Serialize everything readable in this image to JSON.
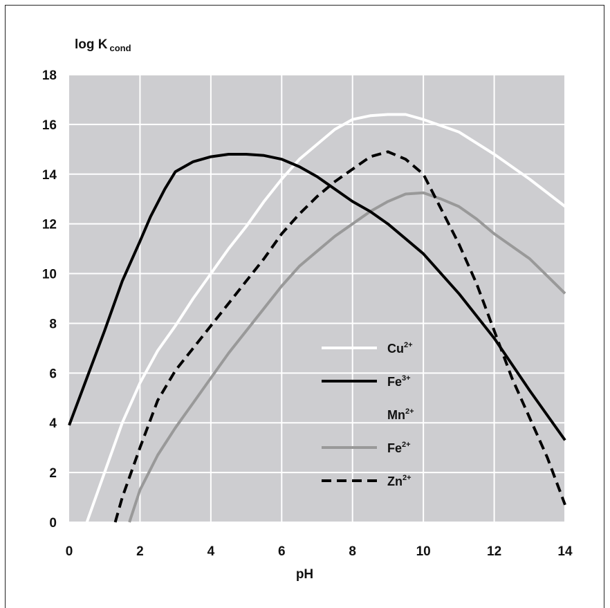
{
  "chart_data": {
    "type": "line",
    "ylabel_main": "log K",
    "ylabel_sub": "cond",
    "xlabel": "pH",
    "xlim": [
      0,
      14
    ],
    "ylim": [
      0,
      18
    ],
    "xticks": [
      0,
      2,
      4,
      6,
      8,
      10,
      12,
      14
    ],
    "yticks": [
      0,
      2,
      4,
      6,
      8,
      10,
      12,
      14,
      16,
      18
    ],
    "grid": true,
    "legend_position": "lower-right",
    "plot_background": "#cdcdd0",
    "series": [
      {
        "name": "Cu",
        "charge": "2+",
        "color": "#ffffff",
        "dash": "solid",
        "points": [
          [
            0.5,
            0
          ],
          [
            1,
            2
          ],
          [
            1.5,
            4
          ],
          [
            2,
            5.6
          ],
          [
            2.5,
            6.9
          ],
          [
            3,
            7.9
          ],
          [
            3.5,
            9
          ],
          [
            4,
            10
          ],
          [
            4.5,
            11
          ],
          [
            5,
            11.9
          ],
          [
            5.5,
            12.9
          ],
          [
            6,
            13.8
          ],
          [
            6.5,
            14.6
          ],
          [
            7,
            15.2
          ],
          [
            7.5,
            15.8
          ],
          [
            8,
            16.2
          ],
          [
            8.5,
            16.35
          ],
          [
            9,
            16.4
          ],
          [
            9.5,
            16.4
          ],
          [
            10,
            16.2
          ],
          [
            11,
            15.7
          ],
          [
            12,
            14.8
          ],
          [
            13,
            13.8
          ],
          [
            14,
            12.7
          ]
        ]
      },
      {
        "name": "Fe",
        "charge": "3+",
        "color": "#000000",
        "dash": "solid",
        "points": [
          [
            0,
            3.9
          ],
          [
            0.5,
            5.8
          ],
          [
            1,
            7.7
          ],
          [
            1.5,
            9.7
          ],
          [
            2,
            11.3
          ],
          [
            2.3,
            12.3
          ],
          [
            2.7,
            13.4
          ],
          [
            3,
            14.1
          ],
          [
            3.5,
            14.5
          ],
          [
            4,
            14.7
          ],
          [
            4.5,
            14.8
          ],
          [
            5,
            14.8
          ],
          [
            5.5,
            14.75
          ],
          [
            6,
            14.6
          ],
          [
            6.5,
            14.3
          ],
          [
            7,
            13.9
          ],
          [
            7.5,
            13.4
          ],
          [
            8,
            12.9
          ],
          [
            8.5,
            12.5
          ],
          [
            9,
            12
          ],
          [
            9.5,
            11.4
          ],
          [
            10,
            10.8
          ],
          [
            11,
            9.2
          ],
          [
            12,
            7.4
          ],
          [
            13,
            5.3
          ],
          [
            14,
            3.3
          ]
        ]
      },
      {
        "name": "Mn",
        "charge": "2+",
        "color": "",
        "dash": "none",
        "points": []
      },
      {
        "name": "Fe",
        "charge": "2+",
        "color": "#999999",
        "dash": "solid",
        "points": [
          [
            1.7,
            0
          ],
          [
            2,
            1.3
          ],
          [
            2.5,
            2.7
          ],
          [
            3,
            3.8
          ],
          [
            3.5,
            4.8
          ],
          [
            4,
            5.8
          ],
          [
            4.5,
            6.8
          ],
          [
            5,
            7.7
          ],
          [
            5.5,
            8.6
          ],
          [
            6,
            9.5
          ],
          [
            6.5,
            10.3
          ],
          [
            7,
            10.9
          ],
          [
            7.5,
            11.5
          ],
          [
            8,
            12
          ],
          [
            8.5,
            12.5
          ],
          [
            9,
            12.9
          ],
          [
            9.5,
            13.2
          ],
          [
            10,
            13.25
          ],
          [
            10.5,
            13
          ],
          [
            11,
            12.7
          ],
          [
            11.5,
            12.2
          ],
          [
            12,
            11.6
          ],
          [
            12.5,
            11.1
          ],
          [
            13,
            10.6
          ],
          [
            13.5,
            9.9
          ],
          [
            14,
            9.2
          ]
        ]
      },
      {
        "name": "Zn",
        "charge": "2+",
        "color": "#000000",
        "dash": "dashed",
        "points": [
          [
            1.3,
            0
          ],
          [
            1.5,
            1
          ],
          [
            2,
            3
          ],
          [
            2.5,
            4.9
          ],
          [
            3,
            6.1
          ],
          [
            3.5,
            7
          ],
          [
            4,
            7.9
          ],
          [
            4.5,
            8.8
          ],
          [
            5,
            9.7
          ],
          [
            5.5,
            10.6
          ],
          [
            6,
            11.6
          ],
          [
            6.5,
            12.4
          ],
          [
            7,
            13.1
          ],
          [
            7.5,
            13.7
          ],
          [
            8,
            14.2
          ],
          [
            8.5,
            14.7
          ],
          [
            9,
            14.9
          ],
          [
            9.5,
            14.6
          ],
          [
            10,
            14
          ],
          [
            10.5,
            12.6
          ],
          [
            11,
            11.2
          ],
          [
            11.5,
            9.6
          ],
          [
            12,
            7.7
          ],
          [
            12.5,
            5.8
          ],
          [
            13,
            4.2
          ],
          [
            13.5,
            2.6
          ],
          [
            14,
            0.7
          ]
        ]
      }
    ]
  }
}
